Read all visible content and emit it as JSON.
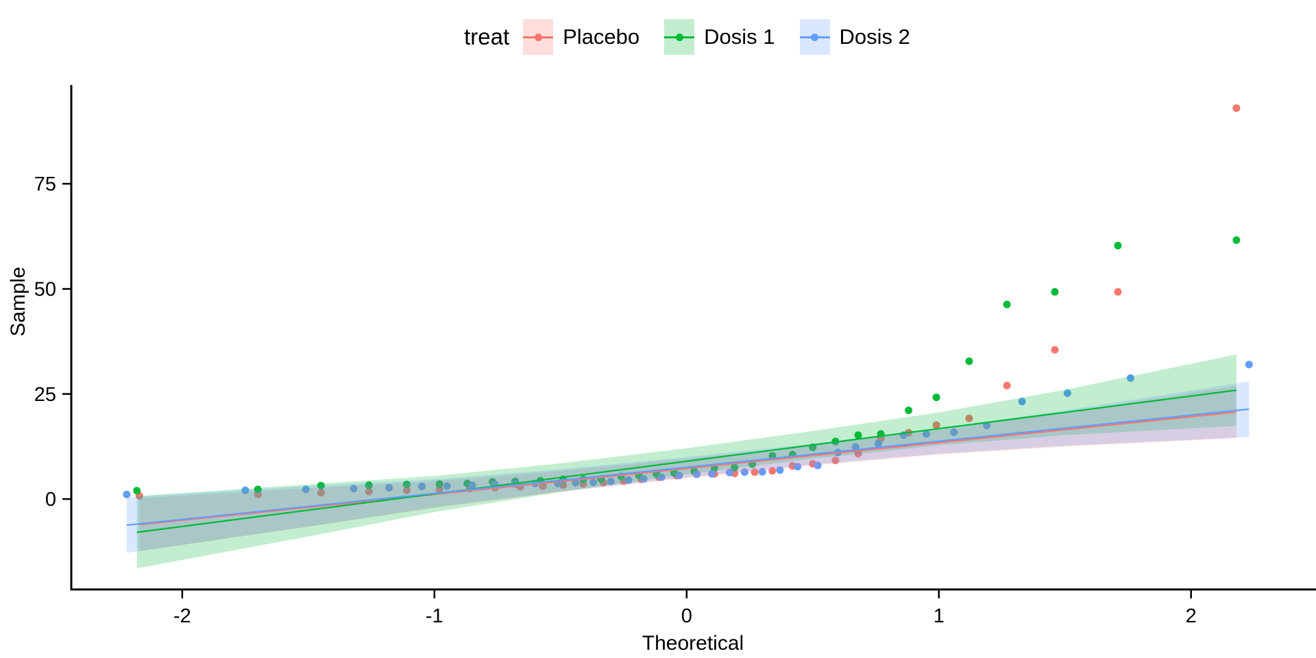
{
  "figure": {
    "background": "#ffffff"
  },
  "legend": {
    "title": "treat",
    "items": [
      {
        "label": "Placebo",
        "color": "#F8766D",
        "fill_opacity": 0.24
      },
      {
        "label": "Dosis 1",
        "color": "#00BA38",
        "fill_opacity": 0.24
      },
      {
        "label": "Dosis 2",
        "color": "#619CFF",
        "fill_opacity": 0.24
      }
    ]
  },
  "chart_data": {
    "type": "scatter",
    "subtype": "qq-plot-with-confidence-bands",
    "title": "",
    "xlabel": "Theoretical",
    "ylabel": "Sample",
    "x_ticks": [
      -2,
      -1,
      0,
      1,
      2
    ],
    "y_ticks": [
      0,
      25,
      50,
      75
    ],
    "xlim": [
      -2.44,
      2.49
    ],
    "ylim": [
      -21.5,
      98.5
    ],
    "grid": false,
    "legend_position": "top",
    "legend_title": "treat",
    "series": [
      {
        "name": "Placebo",
        "color": "#F8766D",
        "points": [
          [
            -2.17,
            0.8
          ],
          [
            -1.7,
            1.1
          ],
          [
            -1.45,
            1.5
          ],
          [
            -1.26,
            1.8
          ],
          [
            -1.11,
            2.1
          ],
          [
            -0.98,
            2.3
          ],
          [
            -0.86,
            2.5
          ],
          [
            -0.76,
            2.7
          ],
          [
            -0.66,
            2.9
          ],
          [
            -0.57,
            3.1
          ],
          [
            -0.49,
            3.3
          ],
          [
            -0.41,
            3.6
          ],
          [
            -0.33,
            3.9
          ],
          [
            -0.25,
            4.3
          ],
          [
            -0.18,
            4.7
          ],
          [
            -0.11,
            5.2
          ],
          [
            -0.04,
            5.6
          ],
          [
            0.04,
            5.9
          ],
          [
            0.11,
            6.0
          ],
          [
            0.19,
            6.1
          ],
          [
            0.27,
            6.4
          ],
          [
            0.34,
            6.7
          ],
          [
            0.42,
            7.9
          ],
          [
            0.5,
            8.4
          ],
          [
            0.59,
            9.2
          ],
          [
            0.68,
            10.8
          ],
          [
            0.77,
            14.4
          ],
          [
            0.88,
            15.8
          ],
          [
            0.99,
            17.6
          ],
          [
            1.12,
            19.2
          ],
          [
            1.27,
            27.0
          ],
          [
            1.46,
            35.5
          ],
          [
            1.71,
            49.3
          ],
          [
            2.18,
            93.0
          ]
        ],
        "line": {
          "x": [
            -2.17,
            2.18
          ],
          "y": [
            -6.1,
            20.7
          ]
        },
        "ribbon": {
          "x": [
            -2.17,
            -1.5,
            -1.0,
            -0.5,
            0.0,
            0.5,
            1.0,
            1.5,
            2.18
          ],
          "upper": [
            0.2,
            2.6,
            4.3,
            6.7,
            9.6,
            12.8,
            16.4,
            20.7,
            26.9
          ],
          "lower": [
            -12.4,
            -6.6,
            -2.1,
            1.7,
            5.0,
            8.0,
            10.6,
            12.5,
            14.5
          ]
        }
      },
      {
        "name": "Dosis 1",
        "color": "#00BA38",
        "points": [
          [
            -2.18,
            2.0
          ],
          [
            -1.7,
            2.3
          ],
          [
            -1.45,
            3.2
          ],
          [
            -1.26,
            3.3
          ],
          [
            -1.11,
            3.5
          ],
          [
            -0.98,
            3.6
          ],
          [
            -0.87,
            3.7
          ],
          [
            -0.77,
            4.1
          ],
          [
            -0.68,
            4.2
          ],
          [
            -0.58,
            4.4
          ],
          [
            -0.49,
            4.7
          ],
          [
            -0.41,
            4.7
          ],
          [
            -0.34,
            4.8
          ],
          [
            -0.26,
            5.4
          ],
          [
            -0.19,
            5.7
          ],
          [
            -0.12,
            6.0
          ],
          [
            -0.05,
            6.2
          ],
          [
            0.03,
            6.6
          ],
          [
            0.11,
            7.4
          ],
          [
            0.19,
            7.5
          ],
          [
            0.26,
            8.3
          ],
          [
            0.34,
            10.3
          ],
          [
            0.42,
            10.6
          ],
          [
            0.5,
            12.3
          ],
          [
            0.59,
            13.7
          ],
          [
            0.68,
            15.2
          ],
          [
            0.77,
            15.5
          ],
          [
            0.88,
            21.1
          ],
          [
            0.99,
            24.2
          ],
          [
            1.12,
            32.8
          ],
          [
            1.27,
            46.3
          ],
          [
            1.46,
            49.3
          ],
          [
            1.71,
            60.3
          ],
          [
            2.18,
            61.6
          ]
        ],
        "line": {
          "x": [
            -2.18,
            2.18
          ],
          "y": [
            -7.9,
            25.9
          ]
        },
        "ribbon": {
          "x": [
            -2.18,
            -1.5,
            -1.0,
            -0.5,
            0.0,
            0.5,
            1.0,
            1.5,
            2.18
          ],
          "upper": [
            0.7,
            3.5,
            5.5,
            8.5,
            12.1,
            16.2,
            20.6,
            26.0,
            34.4
          ],
          "lower": [
            -16.5,
            -8.9,
            -3.1,
            1.7,
            5.9,
            9.6,
            12.8,
            15.2,
            17.4
          ]
        }
      },
      {
        "name": "Dosis 2",
        "color": "#619CFF",
        "points": [
          [
            -2.22,
            1.1
          ],
          [
            -1.75,
            2.1
          ],
          [
            -1.51,
            2.3
          ],
          [
            -1.32,
            2.5
          ],
          [
            -1.18,
            2.7
          ],
          [
            -1.05,
            3.0
          ],
          [
            -0.95,
            3.1
          ],
          [
            -0.85,
            3.3
          ],
          [
            -0.76,
            3.5
          ],
          [
            -0.68,
            3.6
          ],
          [
            -0.6,
            3.7
          ],
          [
            -0.51,
            3.7
          ],
          [
            -0.44,
            3.9
          ],
          [
            -0.37,
            4.0
          ],
          [
            -0.3,
            4.2
          ],
          [
            -0.23,
            4.5
          ],
          [
            -0.17,
            4.8
          ],
          [
            -0.1,
            5.2
          ],
          [
            -0.03,
            5.6
          ],
          [
            0.04,
            5.9
          ],
          [
            0.1,
            6.0
          ],
          [
            0.17,
            6.3
          ],
          [
            0.23,
            6.4
          ],
          [
            0.3,
            6.5
          ],
          [
            0.37,
            6.9
          ],
          [
            0.44,
            7.7
          ],
          [
            0.52,
            8.0
          ],
          [
            0.6,
            11.1
          ],
          [
            0.67,
            12.4
          ],
          [
            0.76,
            13.2
          ],
          [
            0.86,
            15.2
          ],
          [
            0.95,
            15.5
          ],
          [
            1.06,
            15.9
          ],
          [
            1.19,
            17.5
          ],
          [
            1.33,
            23.2
          ],
          [
            1.51,
            25.2
          ],
          [
            1.76,
            28.8
          ],
          [
            2.23,
            32.0
          ]
        ],
        "line": {
          "x": [
            -2.22,
            2.23
          ],
          "y": [
            -6.2,
            21.4
          ]
        },
        "ribbon": {
          "x": [
            -2.22,
            -1.5,
            -1.0,
            -0.5,
            0.0,
            0.5,
            1.0,
            1.5,
            2.23
          ],
          "upper": [
            0.4,
            3.1,
            4.7,
            7.1,
            10.0,
            13.2,
            16.8,
            21.1,
            28.0
          ],
          "lower": [
            -12.8,
            -6.5,
            -1.9,
            1.9,
            5.2,
            8.2,
            10.8,
            12.7,
            14.8
          ]
        }
      }
    ],
    "style": {
      "axis_color": "#000000",
      "tick_label_color": "#000000",
      "ribbon_opacity": 0.24,
      "point_radius": 5.5,
      "line_width": 2.2
    }
  }
}
